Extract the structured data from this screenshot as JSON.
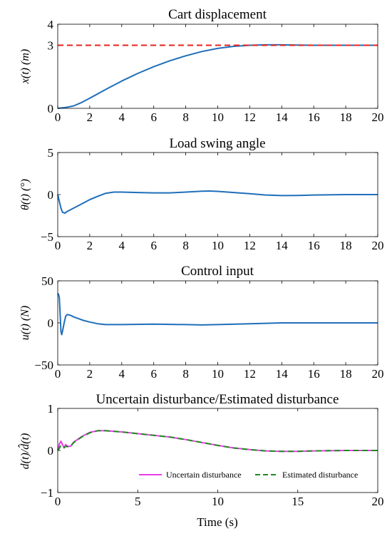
{
  "chart_data": [
    {
      "type": "line",
      "title": "Cart displacement",
      "xlabel": "",
      "ylabel": "x(t) (m)",
      "xlim": [
        0,
        20
      ],
      "ylim": [
        0,
        4
      ],
      "xticks": [
        "0",
        "2",
        "4",
        "6",
        "8",
        "10",
        "12",
        "14",
        "16",
        "18",
        "20"
      ],
      "yticks": [
        "0",
        "3",
        "4"
      ],
      "grid": false,
      "series": [
        {
          "color": "#1f6fba",
          "style": "solid",
          "x": [
            0,
            0.5,
            1,
            1.5,
            2,
            3,
            4,
            5,
            6,
            7,
            8,
            9,
            10,
            11,
            12,
            13,
            14,
            15,
            16,
            18,
            20
          ],
          "y": [
            0,
            0.04,
            0.12,
            0.28,
            0.48,
            0.9,
            1.3,
            1.66,
            1.98,
            2.26,
            2.5,
            2.7,
            2.85,
            2.95,
            3.0,
            3.02,
            3.02,
            3.01,
            3.0,
            3.0,
            3.0
          ]
        },
        {
          "color": "#e8201a",
          "style": "dashed",
          "x": [
            0,
            20
          ],
          "y": [
            3,
            3
          ]
        }
      ]
    },
    {
      "type": "line",
      "title": "Load swing angle",
      "xlabel": "",
      "ylabel": "θ(t) (°)",
      "xlim": [
        0,
        20
      ],
      "ylim": [
        -5,
        5
      ],
      "xticks": [
        "0",
        "2",
        "4",
        "6",
        "8",
        "10",
        "12",
        "14",
        "16",
        "18",
        "20"
      ],
      "yticks": [
        "−5",
        "0",
        "5"
      ],
      "grid": false,
      "series": [
        {
          "color": "#1f6fba",
          "style": "solid",
          "x": [
            0,
            0.1,
            0.2,
            0.3,
            0.45,
            0.6,
            0.8,
            1.0,
            1.4,
            2.0,
            2.5,
            3.0,
            3.5,
            4,
            5,
            6,
            7,
            8,
            9,
            9.5,
            10,
            11,
            12,
            13,
            14,
            15,
            16,
            18,
            20
          ],
          "y": [
            0,
            -0.8,
            -1.6,
            -2.1,
            -2.2,
            -2.0,
            -1.8,
            -1.6,
            -1.2,
            -0.6,
            -0.2,
            0.15,
            0.3,
            0.3,
            0.25,
            0.2,
            0.2,
            0.3,
            0.4,
            0.42,
            0.38,
            0.25,
            0.1,
            -0.05,
            -0.12,
            -0.1,
            -0.05,
            0,
            0
          ]
        }
      ]
    },
    {
      "type": "line",
      "title": "Control input",
      "xlabel": "",
      "ylabel": "u(t) (N)",
      "xlim": [
        0,
        20
      ],
      "ylim": [
        -50,
        50
      ],
      "xticks": [
        "0",
        "2",
        "4",
        "6",
        "8",
        "10",
        "12",
        "14",
        "16",
        "18",
        "20"
      ],
      "yticks": [
        "−50",
        "0",
        "50"
      ],
      "grid": false,
      "series": [
        {
          "color": "#1f6fba",
          "style": "solid",
          "x": [
            0,
            0.05,
            0.1,
            0.15,
            0.2,
            0.25,
            0.3,
            0.4,
            0.5,
            0.6,
            0.8,
            1.0,
            1.3,
            1.6,
            2.0,
            2.5,
            3.0,
            3.5,
            4,
            6,
            8,
            9,
            10,
            12,
            14,
            16,
            18,
            20
          ],
          "y": [
            35,
            34,
            30,
            10,
            -10,
            -14,
            -10,
            0,
            8,
            10,
            9,
            7,
            5,
            3,
            1,
            -1,
            -2,
            -2,
            -2,
            -1.5,
            -2,
            -2.5,
            -2,
            -1,
            0,
            0,
            0,
            0
          ]
        }
      ]
    },
    {
      "type": "line",
      "title": "Uncertain disturbance/Estimated disturbance",
      "xlabel": "Time (s)",
      "ylabel": "d(t)/d̂(t)",
      "xlim": [
        0,
        20
      ],
      "ylim": [
        -1,
        1
      ],
      "xticks": [
        "0",
        "5",
        "10",
        "15",
        "20"
      ],
      "yticks": [
        "−1",
        "0",
        "1"
      ],
      "grid": false,
      "legend": "bottom-right",
      "series": [
        {
          "name": "Uncertain disturbance",
          "color": "#e83ee8",
          "style": "solid",
          "x": [
            0,
            0.1,
            0.2,
            0.3,
            0.4,
            0.5,
            0.6,
            0.8,
            1,
            1.5,
            2,
            2.5,
            3,
            4,
            5,
            6,
            7,
            8,
            9,
            10,
            11,
            12,
            13,
            14,
            15,
            16,
            18,
            20
          ],
          "y": [
            0,
            0.15,
            0.22,
            0.14,
            0.06,
            0.14,
            0.1,
            0.1,
            0.2,
            0.33,
            0.43,
            0.47,
            0.47,
            0.44,
            0.4,
            0.36,
            0.32,
            0.26,
            0.19,
            0.12,
            0.06,
            0.02,
            -0.01,
            -0.02,
            -0.02,
            -0.01,
            0,
            0
          ]
        },
        {
          "name": "Estimated disturbance",
          "color": "#1e8a1e",
          "style": "dashed",
          "x": [
            0,
            0.1,
            0.2,
            0.3,
            0.4,
            0.5,
            0.6,
            0.8,
            1,
            1.5,
            2,
            2.5,
            3,
            4,
            5,
            6,
            7,
            8,
            9,
            10,
            11,
            12,
            13,
            14,
            15,
            16,
            18,
            20
          ],
          "y": [
            0,
            0.05,
            0.12,
            0.12,
            0.07,
            0.1,
            0.09,
            0.1,
            0.19,
            0.32,
            0.42,
            0.47,
            0.47,
            0.44,
            0.4,
            0.36,
            0.32,
            0.26,
            0.19,
            0.12,
            0.06,
            0.02,
            -0.01,
            -0.02,
            -0.02,
            -0.01,
            0,
            0
          ]
        }
      ]
    }
  ]
}
